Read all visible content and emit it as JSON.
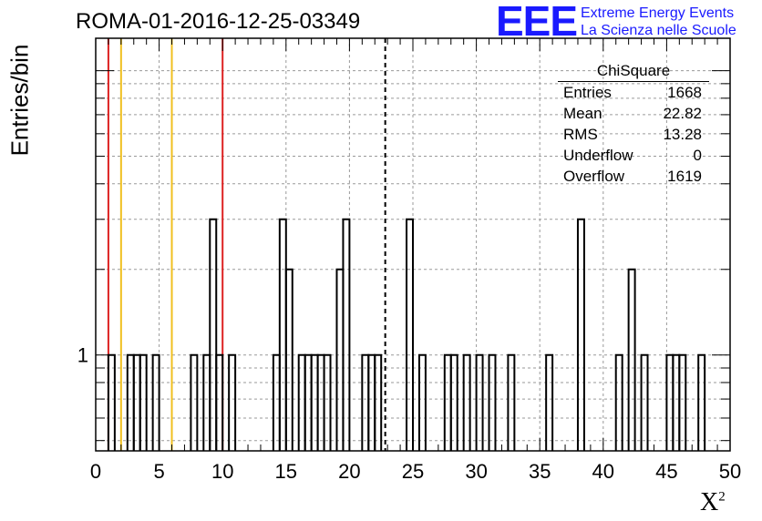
{
  "chart_data": {
    "type": "histogram",
    "title": "ROMA-01-2016-12-25-03349",
    "xlabel": "X",
    "xlabel_superscript": "2",
    "ylabel": "Entries/bin",
    "xlim": [
      0,
      50
    ],
    "ylog": true,
    "ylim": [
      0.46,
      13
    ],
    "ytick_labels": [
      {
        "value": 1,
        "label": "1"
      }
    ],
    "xticks": [
      0,
      5,
      10,
      15,
      20,
      25,
      30,
      35,
      40,
      45,
      50
    ],
    "xtick_labels": [
      "0",
      "5",
      "10",
      "15",
      "20",
      "25",
      "30",
      "35",
      "40",
      "45",
      "50"
    ],
    "grid": true,
    "bin_width": 0.5,
    "bins": [
      [
        1.0,
        1
      ],
      [
        2.5,
        1
      ],
      [
        3.0,
        1
      ],
      [
        3.5,
        1
      ],
      [
        4.5,
        1
      ],
      [
        7.5,
        1
      ],
      [
        8.5,
        1
      ],
      [
        9.0,
        3
      ],
      [
        9.5,
        1
      ],
      [
        10.5,
        1
      ],
      [
        14.0,
        1
      ],
      [
        14.5,
        3
      ],
      [
        15.0,
        2
      ],
      [
        16.0,
        1
      ],
      [
        16.5,
        1
      ],
      [
        17.0,
        1
      ],
      [
        17.5,
        1
      ],
      [
        18.0,
        1
      ],
      [
        19.0,
        2
      ],
      [
        19.5,
        3
      ],
      [
        21.0,
        1
      ],
      [
        21.5,
        1
      ],
      [
        22.0,
        1
      ],
      [
        24.5,
        3
      ],
      [
        25.5,
        1
      ],
      [
        27.5,
        1
      ],
      [
        28.0,
        1
      ],
      [
        29.0,
        1
      ],
      [
        30.0,
        1
      ],
      [
        31.0,
        1
      ],
      [
        32.5,
        1
      ],
      [
        35.5,
        1
      ],
      [
        38.0,
        3
      ],
      [
        41.0,
        1
      ],
      [
        42.0,
        2
      ],
      [
        43.0,
        1
      ],
      [
        45.0,
        1
      ],
      [
        45.5,
        1
      ],
      [
        46.0,
        1
      ],
      [
        47.5,
        1
      ]
    ],
    "vertical_lines": [
      {
        "x": 1.0,
        "color": "#dd2222",
        "style": "solid"
      },
      {
        "x": 2.0,
        "color": "#f0c020",
        "style": "solid"
      },
      {
        "x": 6.0,
        "color": "#f0c020",
        "style": "solid"
      },
      {
        "x": 10.0,
        "color": "#dd2222",
        "style": "solid"
      },
      {
        "x": 22.82,
        "color": "#000000",
        "style": "dashed"
      }
    ],
    "stats": {
      "title": "ChiSquare",
      "rows": [
        {
          "label": "Entries",
          "value": "1668"
        },
        {
          "label": "Mean",
          "value": "22.82"
        },
        {
          "label": "RMS",
          "value": "13.28"
        },
        {
          "label": "Underflow",
          "value": "0"
        },
        {
          "label": "Overflow",
          "value": "1619"
        }
      ]
    }
  },
  "logo": {
    "mark": "EEE",
    "line1": "Extreme Energy Events",
    "line2": "La Scienza nelle Scuole",
    "color": "#1a1aff"
  }
}
